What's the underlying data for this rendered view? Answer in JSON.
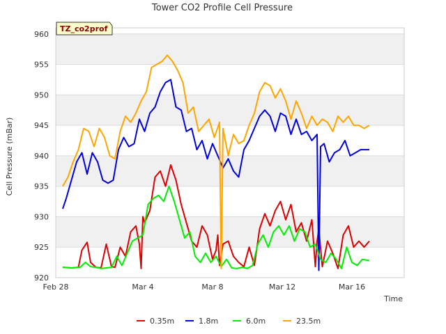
{
  "chart_data": {
    "type": "line",
    "title": "Tower CO2 Profile Cell Pressure",
    "xlabel": "Time",
    "ylabel": "Cell Pressure (mBar)",
    "badge": "TZ_co2prof",
    "ylim": [
      920,
      961
    ],
    "yticks": [
      920,
      925,
      930,
      935,
      940,
      945,
      950,
      955,
      960
    ],
    "xlim": [
      0,
      20
    ],
    "xticks": [
      {
        "value": 0,
        "label": "Feb 28"
      },
      {
        "value": 5,
        "label": "Mar 4"
      },
      {
        "value": 9,
        "label": "Mar 8"
      },
      {
        "value": 13,
        "label": "Mar 12"
      },
      {
        "value": 17,
        "label": "Mar 16"
      }
    ],
    "grid": true,
    "legend_position": "bottom",
    "series": [
      {
        "name": "0.35m",
        "color": "#dd0000",
        "x": [
          0.4,
          0.9,
          1.3,
          1.5,
          1.8,
          2.0,
          2.3,
          2.6,
          2.9,
          3.2,
          3.4,
          3.7,
          4.0,
          4.3,
          4.6,
          4.8,
          4.9,
          5.0,
          5.1,
          5.4,
          5.7,
          6.0,
          6.3,
          6.6,
          6.9,
          7.2,
          7.5,
          7.8,
          8.1,
          8.4,
          8.7,
          9.0,
          9.2,
          9.3,
          9.4,
          9.6,
          9.9,
          10.2,
          10.5,
          10.8,
          11.1,
          11.4,
          11.7,
          12.0,
          12.3,
          12.6,
          12.9,
          13.2,
          13.5,
          13.8,
          14.1,
          14.4,
          14.7,
          14.9,
          15.0,
          15.1,
          15.3,
          15.6,
          15.9,
          16.2,
          16.5,
          16.8,
          17.1,
          17.4,
          17.7,
          18.0
        ],
        "y": [
          921.7,
          921.6,
          921.7,
          924.5,
          925.8,
          922.5,
          921.7,
          921.6,
          925.5,
          921.8,
          921.7,
          925.0,
          923.5,
          927.5,
          928.5,
          925.5,
          921.5,
          930.0,
          929.0,
          931.0,
          936.5,
          937.5,
          935.0,
          938.5,
          936.0,
          932.0,
          929.0,
          926.0,
          925.0,
          928.5,
          927.0,
          923.0,
          924.5,
          927.0,
          922.0,
          925.5,
          926.0,
          923.5,
          922.5,
          921.8,
          925.0,
          922.0,
          928.0,
          930.5,
          928.5,
          931.0,
          932.5,
          929.5,
          932.0,
          927.5,
          929.0,
          926.0,
          929.5,
          921.8,
          926.0,
          928.0,
          921.8,
          926.0,
          924.0,
          921.5,
          927.0,
          928.5,
          925.0,
          926.0,
          925.0,
          926.0
        ]
      },
      {
        "name": "1.8m",
        "color": "#0000dd",
        "x": [
          0.4,
          0.6,
          0.9,
          1.2,
          1.5,
          1.8,
          2.1,
          2.4,
          2.7,
          3.0,
          3.3,
          3.6,
          3.9,
          4.2,
          4.5,
          4.8,
          5.1,
          5.4,
          5.7,
          6.0,
          6.3,
          6.6,
          6.9,
          7.2,
          7.5,
          7.8,
          8.1,
          8.4,
          8.7,
          9.0,
          9.3,
          9.6,
          9.9,
          10.2,
          10.5,
          10.8,
          11.1,
          11.4,
          11.7,
          12.0,
          12.3,
          12.6,
          12.9,
          13.2,
          13.5,
          13.8,
          14.1,
          14.4,
          14.7,
          15.0,
          15.1,
          15.2,
          15.4,
          15.7,
          16.0,
          16.3,
          16.6,
          16.9,
          17.2,
          17.5,
          18.0
        ],
        "y": [
          931.3,
          933.0,
          936.0,
          939.0,
          940.5,
          937.0,
          940.5,
          939.0,
          936.0,
          935.5,
          936.0,
          941.0,
          943.0,
          941.5,
          942.0,
          946.0,
          944.0,
          947.0,
          948.0,
          950.5,
          952.0,
          952.5,
          948.0,
          947.5,
          944.0,
          944.5,
          941.0,
          942.5,
          939.5,
          942.0,
          940.0,
          938.0,
          939.5,
          937.5,
          936.5,
          941.0,
          942.5,
          944.5,
          946.5,
          947.5,
          946.5,
          944.0,
          947.0,
          946.5,
          943.5,
          946.0,
          943.5,
          944.0,
          942.5,
          943.5,
          921.2,
          941.5,
          942.0,
          939.0,
          940.5,
          941.0,
          942.5,
          940.0,
          940.5,
          941.0,
          941.0
        ]
      },
      {
        "name": "6.0m",
        "color": "#00ee00",
        "x": [
          0.4,
          0.9,
          1.4,
          1.7,
          2.0,
          2.3,
          2.6,
          2.9,
          3.2,
          3.5,
          3.8,
          4.1,
          4.4,
          4.7,
          5.0,
          5.3,
          5.6,
          5.9,
          6.2,
          6.5,
          6.8,
          7.1,
          7.4,
          7.7,
          8.0,
          8.3,
          8.6,
          8.9,
          9.2,
          9.5,
          9.8,
          10.1,
          10.4,
          10.7,
          11.0,
          11.3,
          11.6,
          11.9,
          12.2,
          12.5,
          12.8,
          13.1,
          13.4,
          13.7,
          14.0,
          14.3,
          14.6,
          14.9,
          15.2,
          15.5,
          15.8,
          16.1,
          16.4,
          16.7,
          17.0,
          17.3,
          17.6,
          18.0
        ],
        "y": [
          921.7,
          921.6,
          921.7,
          922.5,
          921.8,
          921.7,
          921.5,
          921.6,
          921.7,
          923.5,
          922.0,
          924.0,
          926.0,
          926.5,
          927.0,
          932.0,
          933.0,
          933.5,
          932.5,
          935.0,
          932.5,
          929.5,
          926.5,
          927.5,
          923.5,
          922.5,
          924.0,
          922.5,
          923.5,
          921.8,
          923.0,
          921.6,
          921.5,
          921.7,
          921.5,
          922.0,
          925.5,
          927.0,
          925.0,
          927.5,
          928.5,
          927.0,
          928.5,
          926.0,
          928.0,
          927.5,
          925.0,
          925.5,
          923.0,
          922.5,
          924.0,
          923.0,
          921.5,
          925.0,
          922.5,
          922.0,
          923.0,
          922.8
        ]
      },
      {
        "name": "23.5m",
        "color": "#ffa500",
        "x": [
          0.4,
          0.7,
          1.0,
          1.3,
          1.6,
          1.9,
          2.2,
          2.5,
          2.8,
          3.1,
          3.4,
          3.7,
          4.0,
          4.3,
          4.6,
          4.9,
          5.2,
          5.5,
          5.8,
          6.1,
          6.4,
          6.7,
          7.0,
          7.3,
          7.6,
          7.9,
          8.2,
          8.5,
          8.8,
          9.1,
          9.4,
          9.5,
          9.6,
          9.9,
          10.2,
          10.5,
          10.8,
          11.1,
          11.4,
          11.7,
          12.0,
          12.3,
          12.6,
          12.9,
          13.2,
          13.5,
          13.8,
          14.1,
          14.4,
          14.7,
          15.0,
          15.3,
          15.6,
          15.9,
          16.2,
          16.5,
          16.8,
          17.1,
          17.4,
          17.7,
          18.0
        ],
        "y": [
          935.0,
          936.5,
          939.0,
          941.0,
          944.5,
          944.0,
          941.5,
          944.5,
          943.0,
          940.0,
          939.5,
          944.0,
          946.5,
          945.5,
          947.0,
          949.0,
          950.5,
          954.5,
          955.0,
          955.5,
          956.5,
          955.5,
          954.0,
          952.0,
          947.0,
          948.0,
          944.0,
          945.0,
          946.0,
          943.0,
          945.5,
          921.5,
          944.5,
          940.0,
          943.5,
          942.0,
          942.5,
          945.0,
          947.0,
          950.5,
          952.0,
          951.5,
          949.5,
          951.0,
          949.0,
          946.0,
          949.0,
          947.0,
          944.5,
          946.5,
          945.0,
          946.0,
          945.5,
          944.0,
          946.5,
          945.5,
          946.5,
          945.0,
          945.0,
          944.5,
          945.0
        ]
      }
    ]
  }
}
